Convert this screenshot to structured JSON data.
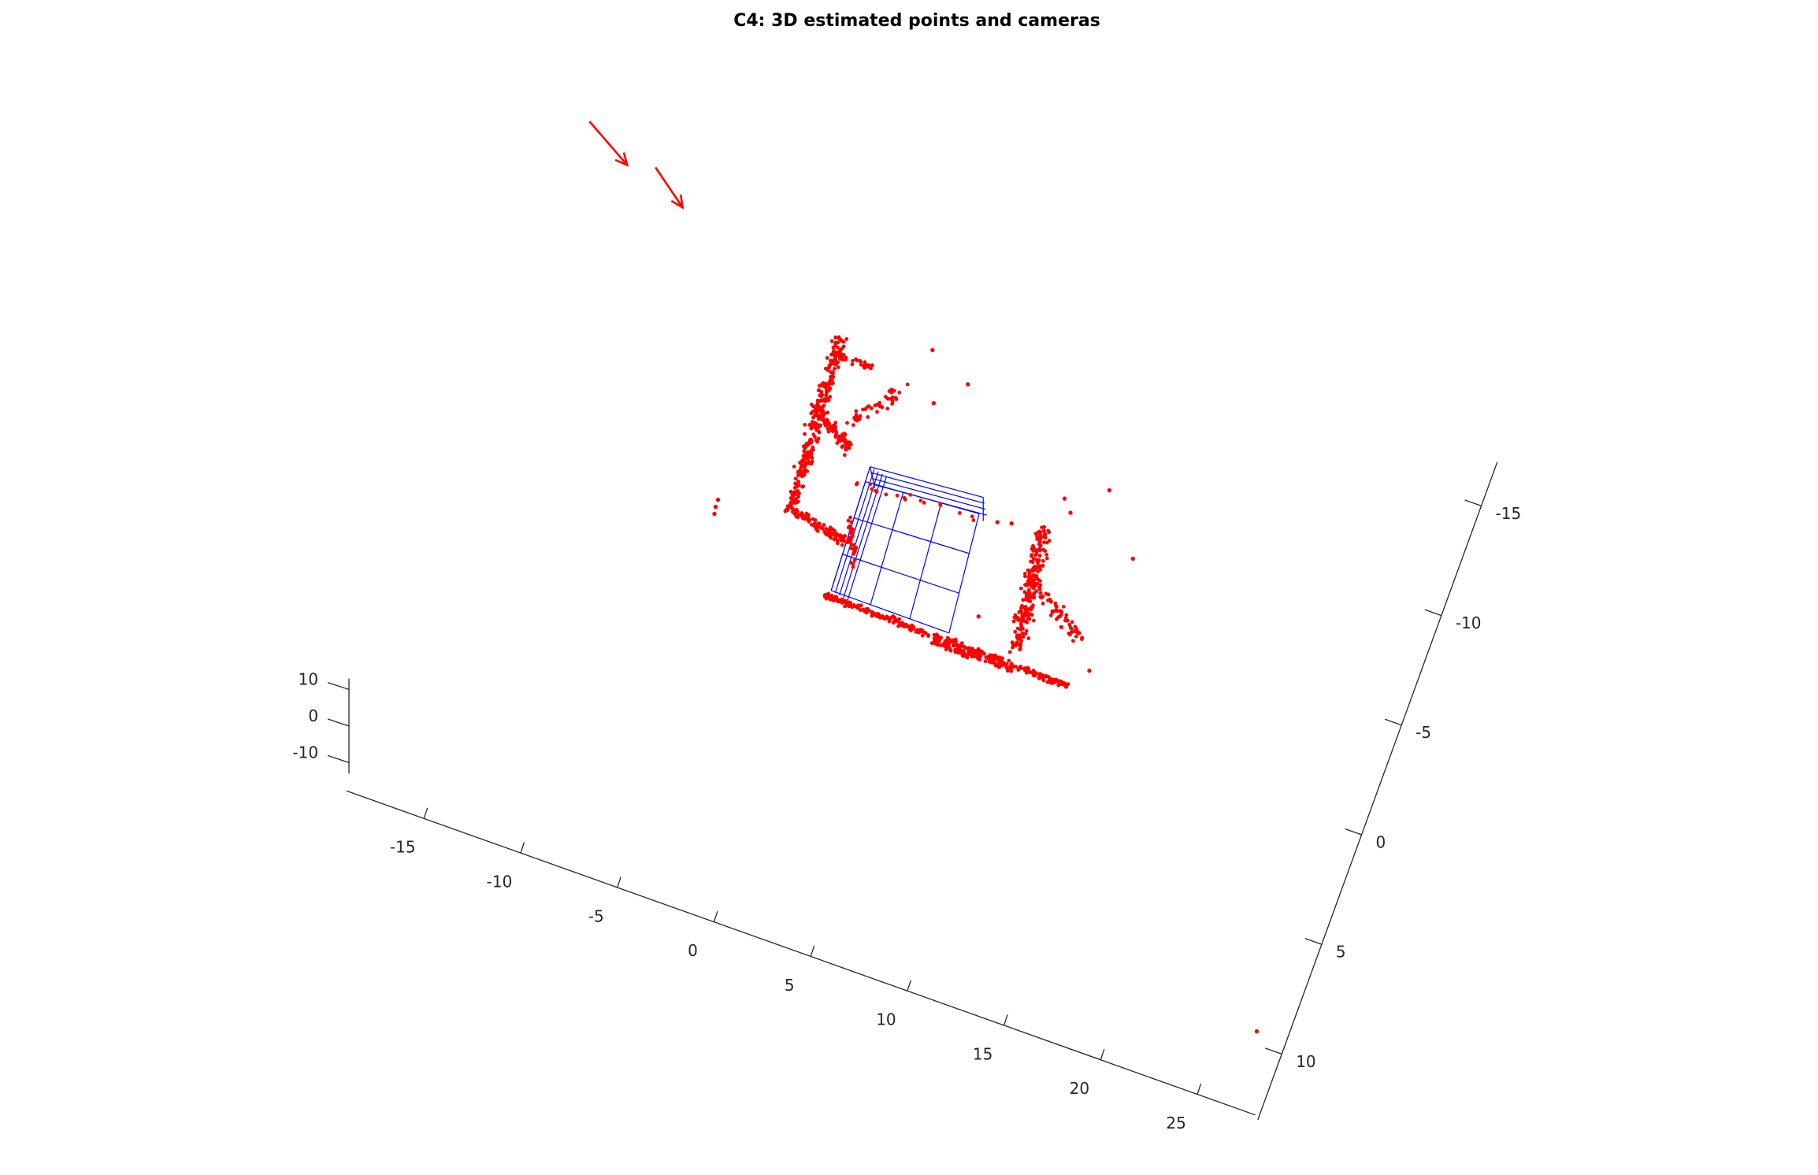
{
  "chart_data": {
    "type": "scatter",
    "title": "C4: 3D estimated points and cameras",
    "axes": {
      "x": {
        "ticks": [
          -15,
          -10,
          -5,
          0,
          5,
          10,
          15,
          20,
          25
        ],
        "range": [
          -19,
          28
        ]
      },
      "y": {
        "ticks": [
          -15,
          -10,
          -5,
          0,
          5,
          10
        ],
        "range": [
          -17,
          13
        ]
      },
      "z": {
        "ticks": [
          10,
          0,
          -10
        ],
        "range": [
          -13,
          13
        ]
      }
    },
    "grid": false,
    "colors": {
      "points": "#ff0000",
      "cameras": "#ff0000",
      "wireframe": "#0000ff",
      "axes": "#262626"
    },
    "series": [
      {
        "kind": "point-cloud",
        "color": "#ff0000"
      },
      {
        "kind": "camera-arrows",
        "color": "#ff0000",
        "count": 2
      },
      {
        "kind": "cube-wireframe",
        "color": "#0000ff"
      }
    ]
  }
}
